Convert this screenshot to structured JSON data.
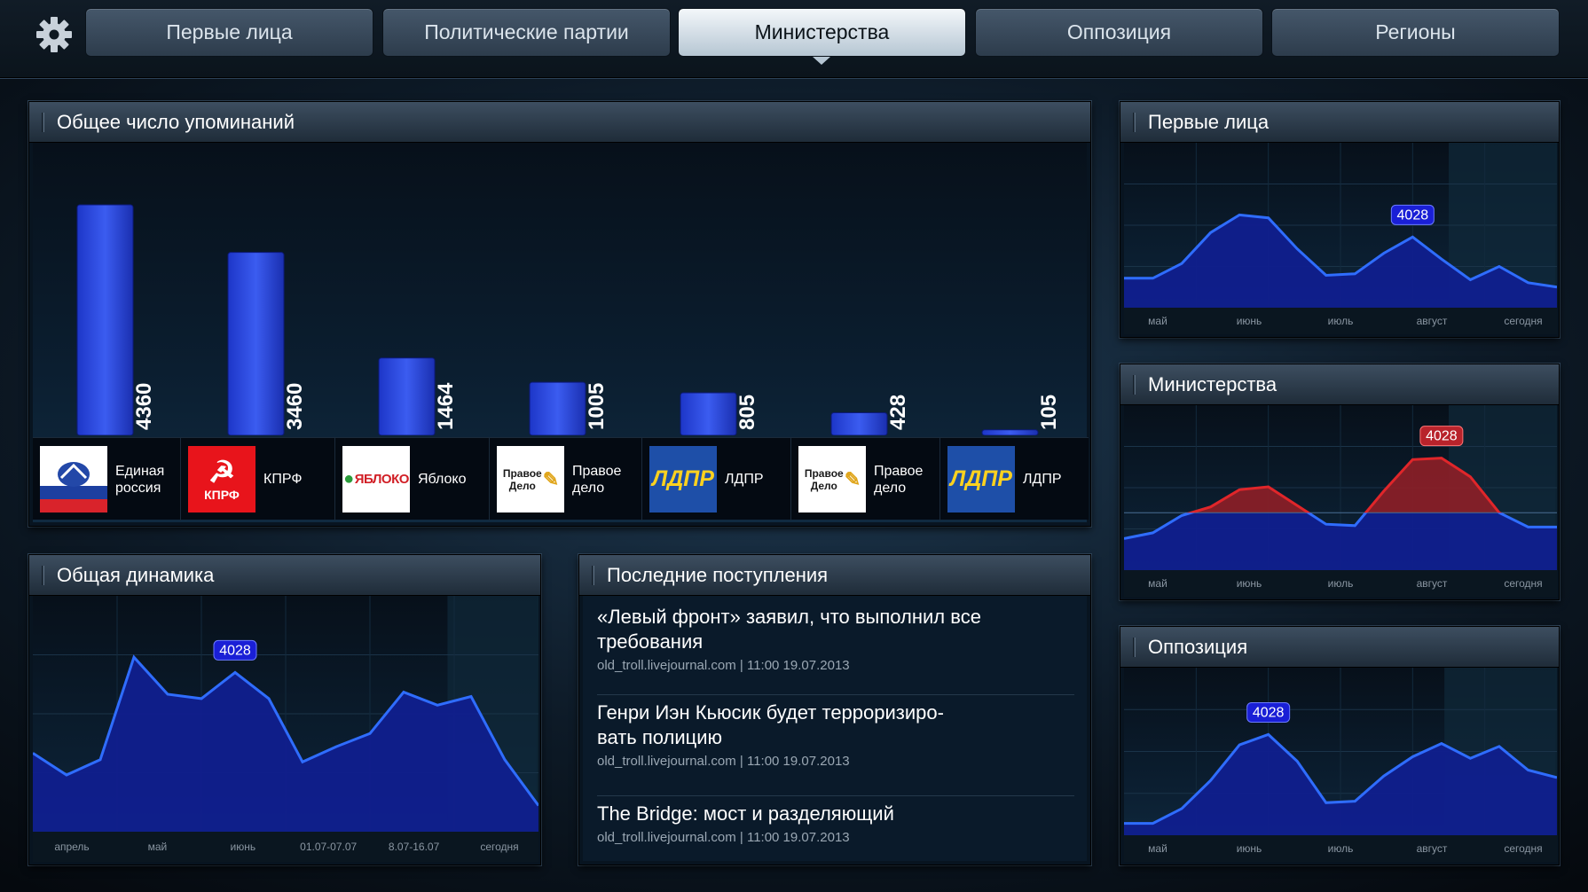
{
  "tabs": [
    {
      "label": "Первые лица",
      "active": false
    },
    {
      "label": "Политические партии",
      "active": false
    },
    {
      "label": "Министерства",
      "active": true
    },
    {
      "label": "Оппозиция",
      "active": false
    },
    {
      "label": "Регионы",
      "active": false
    }
  ],
  "mentions_panel": {
    "title": "Общее число упоминаний",
    "parties": [
      {
        "name": "Единая россия",
        "logo": "united-russia-logo"
      },
      {
        "name": "КПРФ",
        "logo": "kprf-logo",
        "logo_text": "КПРФ"
      },
      {
        "name": "Яблоко",
        "logo": "yabloko-logo",
        "logo_text": "ЯБЛОКО"
      },
      {
        "name": "Правое дело",
        "logo": "pravoe-delo-logo",
        "logo_text": "Правое Дело"
      },
      {
        "name": "ЛДПР",
        "logo": "ldpr-logo",
        "logo_text": "ЛДПР"
      },
      {
        "name": "Правое дело",
        "logo": "pravoe-delo-logo",
        "logo_text": "Правое Дело"
      },
      {
        "name": "ЛДПР",
        "logo": "ldpr-logo",
        "logo_text": "ЛДПР"
      }
    ]
  },
  "dynamics_panel": {
    "title": "Общая динамика"
  },
  "news_panel": {
    "title": "Последние поступления",
    "items": [
      {
        "title": "«Левый фронт» заявил, что выполнил все требования",
        "meta": "old_troll.livejournal.com | 11:00 19.07.2013"
      },
      {
        "title": "Генри Иэн Кьюсик будет терроризиро-вать полицию",
        "meta": "old_troll.livejournal.com | 11:00 19.07.2013"
      },
      {
        "title": "The Bridge: мост и разделяющий",
        "meta": "old_troll.livejournal.com | 11:00 19.07.2013"
      }
    ]
  },
  "side_panels": [
    {
      "title": "Первые лица"
    },
    {
      "title": "Министерства"
    },
    {
      "title": "Оппозиция"
    }
  ],
  "colors": {
    "bar": "#2a44d8",
    "line_blue": "#2f6dff",
    "fill_blue": "#101f8e",
    "line_red": "#e0262a",
    "fill_red": "#8e1f27",
    "badge_blue": "#1a1fd6",
    "badge_red": "#b8232b"
  },
  "chart_data": [
    {
      "type": "bar",
      "title": "Общее число упоминаний",
      "categories": [
        "Единая россия",
        "КПРФ",
        "Яблоко",
        "Правое дело",
        "ЛДПР",
        "Правое дело",
        "ЛДПР"
      ],
      "values": [
        4360,
        3460,
        1464,
        1005,
        805,
        428,
        105
      ],
      "value_labels": [
        "4360",
        "3460",
        "1464",
        "1005",
        "805",
        "428",
        "105"
      ]
    },
    {
      "type": "area",
      "title": "Общая динамика",
      "x_labels": [
        "апрель",
        "май",
        "июнь",
        "01.07-07.07",
        "8.07-16.07",
        "сегодня"
      ],
      "values": [
        36,
        26,
        33,
        80,
        63,
        61,
        73,
        61,
        32,
        39,
        45,
        64,
        58,
        62,
        33,
        12
      ],
      "highlight": {
        "index": 6,
        "label": "4028"
      },
      "ylim": [
        0,
        100
      ]
    },
    {
      "type": "area",
      "title": "Первые лица",
      "x_labels": [
        "май",
        "июнь",
        "июль",
        "август",
        "сегодня"
      ],
      "values": [
        20,
        20,
        30,
        51,
        63,
        61,
        40,
        22,
        23,
        37,
        48,
        33,
        19,
        28,
        17,
        14
      ],
      "highlight": {
        "index": 10,
        "label": "4028"
      },
      "ylim": [
        0,
        100
      ]
    },
    {
      "type": "area",
      "title": "Министерства",
      "x_labels": [
        "май",
        "июнь",
        "июль",
        "август",
        "сегодня"
      ],
      "values": [
        22,
        26,
        38,
        44,
        56,
        58,
        45,
        32,
        31,
        55,
        77,
        78,
        65,
        40,
        30,
        30
      ],
      "threshold": 40,
      "highlight": {
        "index": 11,
        "label": "4028"
      },
      "ylim": [
        0,
        100
      ]
    },
    {
      "type": "area",
      "title": "Оппозиция",
      "x_labels": [
        "май",
        "июнь",
        "июль",
        "август",
        "сегодня"
      ],
      "values": [
        8,
        8,
        18,
        37,
        61,
        68,
        50,
        22,
        23,
        40,
        53,
        62,
        52,
        60,
        44,
        39
      ],
      "highlight": {
        "index": 5,
        "label": "4028"
      },
      "ylim": [
        0,
        100
      ]
    }
  ]
}
